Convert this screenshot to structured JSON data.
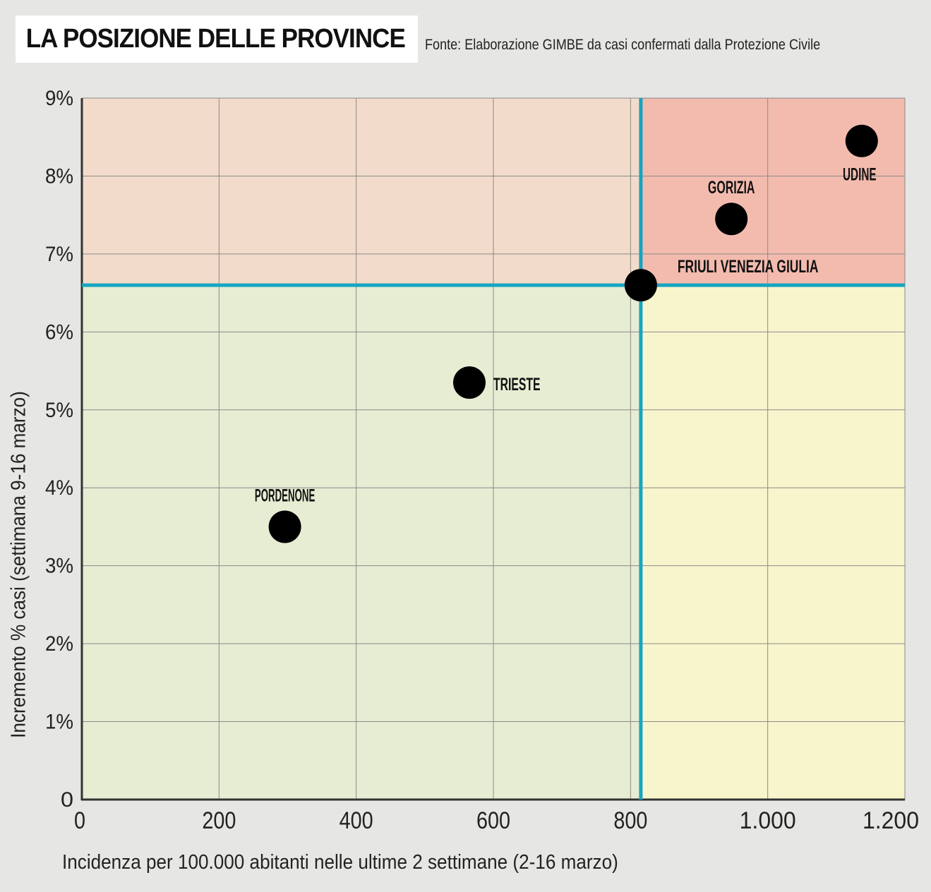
{
  "header": {
    "title": "LA POSIZIONE DELLE PROVINCE",
    "source": "Fonte: Elaborazione GIMBE da casi confermati dalla Protezione Civile"
  },
  "chart_data": {
    "type": "scatter",
    "xlabel": "Incidenza per 100.000 abitanti nelle ultime 2 settimane (2-16 marzo)",
    "ylabel": "Incremento % casi (settimana 9-16 marzo)",
    "xlim": [
      0,
      1200
    ],
    "ylim": [
      0,
      9
    ],
    "x_ticks": [
      0,
      200,
      400,
      600,
      800,
      1000,
      1200
    ],
    "x_tick_labels": [
      "0",
      "200",
      "400",
      "600",
      "800",
      "1.000",
      "1.200"
    ],
    "y_ticks": [
      0,
      1,
      2,
      3,
      4,
      5,
      6,
      7,
      8,
      9
    ],
    "y_tick_labels": [
      "0",
      "1%",
      "2%",
      "3%",
      "4%",
      "5%",
      "6%",
      "7%",
      "8%",
      "9%"
    ],
    "grid": true,
    "reference_lines": {
      "x": 815,
      "y": 6.6
    },
    "quadrant_colors": {
      "top_left": "#f2dbca",
      "top_right": "#f3bbae",
      "bottom_left": "#e6edd3",
      "bottom_right": "#f8f5cc"
    },
    "reference_line_color": "#16a5c0",
    "point_color": "#000000",
    "points": [
      {
        "label": "UDINE",
        "x": 1137,
        "y": 8.45,
        "label_pos": "below"
      },
      {
        "label": "GORIZIA",
        "x": 947,
        "y": 7.45,
        "label_pos": "above"
      },
      {
        "label": "FRIULI VENEZIA GIULIA",
        "x": 815,
        "y": 6.6,
        "label_pos": "upper-right"
      },
      {
        "label": "TRIESTE",
        "x": 565,
        "y": 5.35,
        "label_pos": "right"
      },
      {
        "label": "PORDENONE",
        "x": 296,
        "y": 3.5,
        "label_pos": "above"
      }
    ]
  }
}
